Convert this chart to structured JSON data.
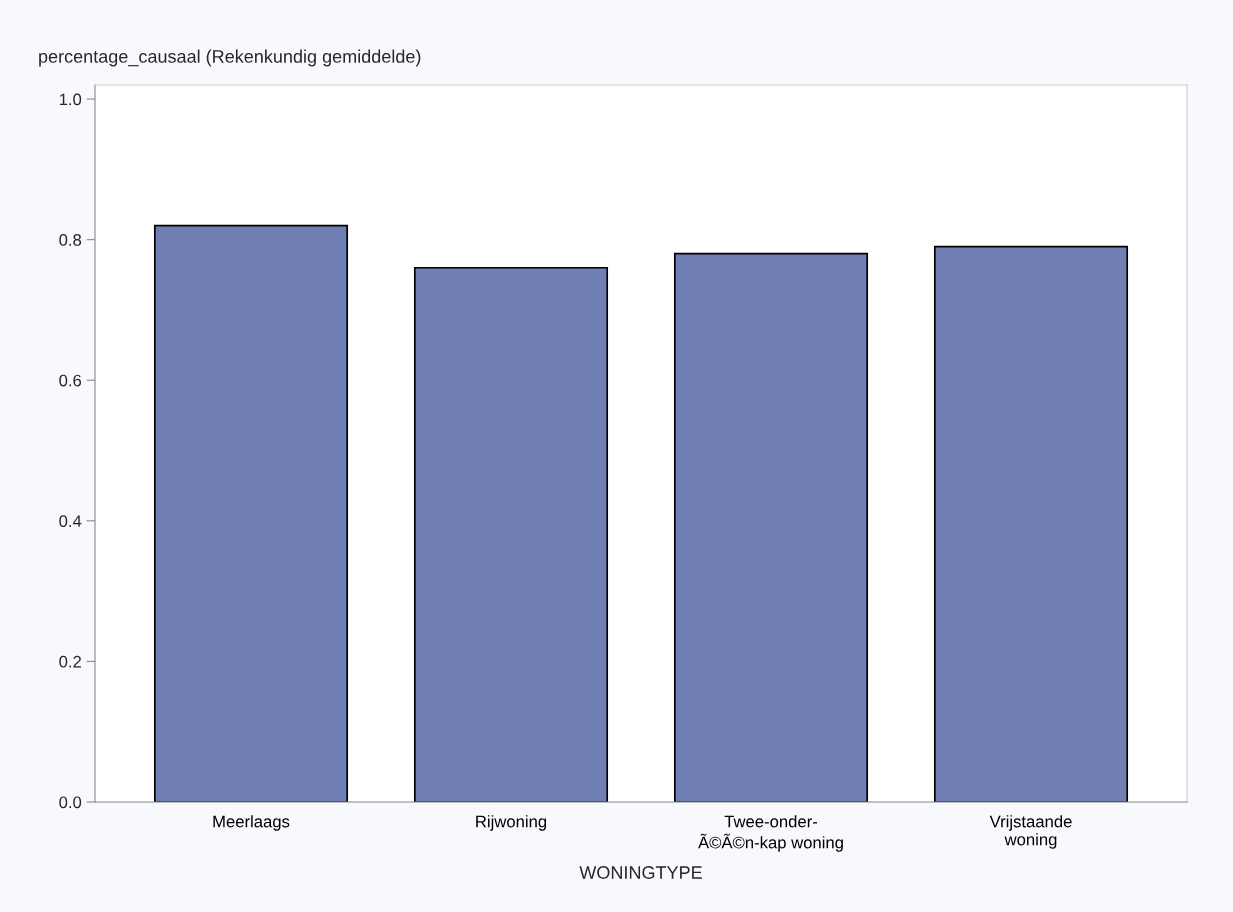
{
  "chart_data": {
    "type": "bar",
    "ylabel": "percentage_causaal (Rekenkundig gemiddelde)",
    "xlabel": "WONINGTYPE",
    "categories": [
      "Meerlaags",
      "Rijwoning",
      "Twee-onder-\nÃ©Ã©n-kap woning",
      "Vrijstaande\nwoning"
    ],
    "values": [
      0.82,
      0.76,
      0.78,
      0.79
    ],
    "color": "#6f7eb3",
    "ylim": [
      0,
      1.02
    ],
    "yticks": [
      {
        "value": 0,
        "label": "0.0"
      },
      {
        "value": 0.2,
        "label": "0.2"
      },
      {
        "value": 0.4,
        "label": "0.4"
      },
      {
        "value": 0.6,
        "label": "0.6"
      },
      {
        "value": 0.8,
        "label": "0.8"
      },
      {
        "value": 1.0,
        "label": "1.0"
      }
    ],
    "grid": false
  }
}
